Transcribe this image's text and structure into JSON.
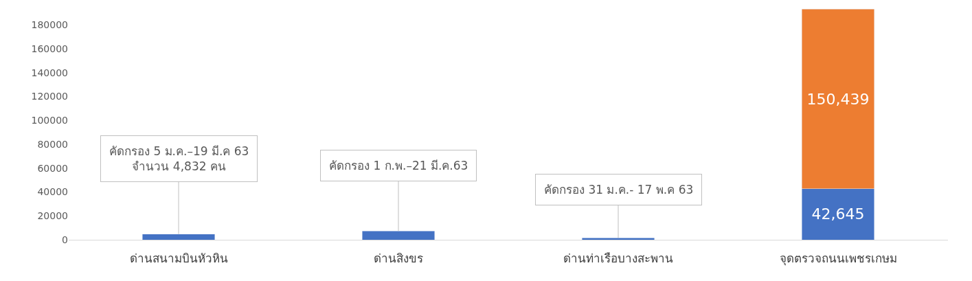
{
  "chart_data": {
    "type": "bar",
    "stacked": true,
    "categories": [
      "ด่านสนามบินหัวหิน",
      "ด่านสิงขร",
      "ด่านท่าเรือบางสะพาน",
      "จุดตรวจถนนเพชรเกษม"
    ],
    "series": [
      {
        "color": "#4472c4",
        "values": [
          4832,
          7200,
          1700,
          42645
        ],
        "value_labels": [
          null,
          null,
          null,
          "42,645"
        ]
      },
      {
        "color": "#ed7d31",
        "values": [
          null,
          null,
          null,
          150439
        ],
        "value_labels": [
          null,
          null,
          null,
          "150,439"
        ]
      }
    ],
    "ylim": [
      0,
      195000
    ],
    "yticks": [
      0,
      20000,
      40000,
      60000,
      80000,
      100000,
      120000,
      140000,
      160000,
      180000
    ],
    "annotations": [
      {
        "text": "คัดกรอง 5 ม.ค.–19 มี.ค 63\nจำนวน 4,832 คน",
        "x": "ด่านสนามบินหัวหิน",
        "y": 4832
      },
      {
        "text": "คัดกรอง 1 ก.พ.–21 มี.ค.63",
        "x": "ด่านสิงขร",
        "y": 7200
      },
      {
        "text": "คัดกรอง 31 ม.ค.- 17 พ.ค 63",
        "x": "ด่านท่าเรือบางสะพาน",
        "y": 1700
      }
    ]
  }
}
